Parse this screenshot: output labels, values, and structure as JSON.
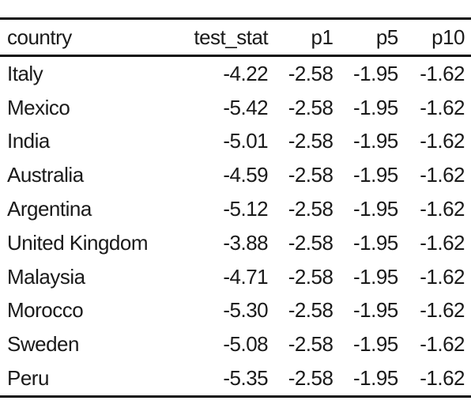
{
  "chart_data": {
    "type": "table",
    "columns": [
      "country",
      "test_stat",
      "p1",
      "p5",
      "p10"
    ],
    "rows": [
      [
        "Italy",
        "-4.22",
        "-2.58",
        "-1.95",
        "-1.62"
      ],
      [
        "Mexico",
        "-5.42",
        "-2.58",
        "-1.95",
        "-1.62"
      ],
      [
        "India",
        "-5.01",
        "-2.58",
        "-1.95",
        "-1.62"
      ],
      [
        "Australia",
        "-4.59",
        "-2.58",
        "-1.95",
        "-1.62"
      ],
      [
        "Argentina",
        "-5.12",
        "-2.58",
        "-1.95",
        "-1.62"
      ],
      [
        "United Kingdom",
        "-3.88",
        "-2.58",
        "-1.95",
        "-1.62"
      ],
      [
        "Malaysia",
        "-4.71",
        "-2.58",
        "-1.95",
        "-1.62"
      ],
      [
        "Morocco",
        "-5.30",
        "-2.58",
        "-1.95",
        "-1.62"
      ],
      [
        "Sweden",
        "-5.08",
        "-2.58",
        "-1.95",
        "-1.62"
      ],
      [
        "Peru",
        "-5.35",
        "-2.58",
        "-1.95",
        "-1.62"
      ]
    ]
  }
}
